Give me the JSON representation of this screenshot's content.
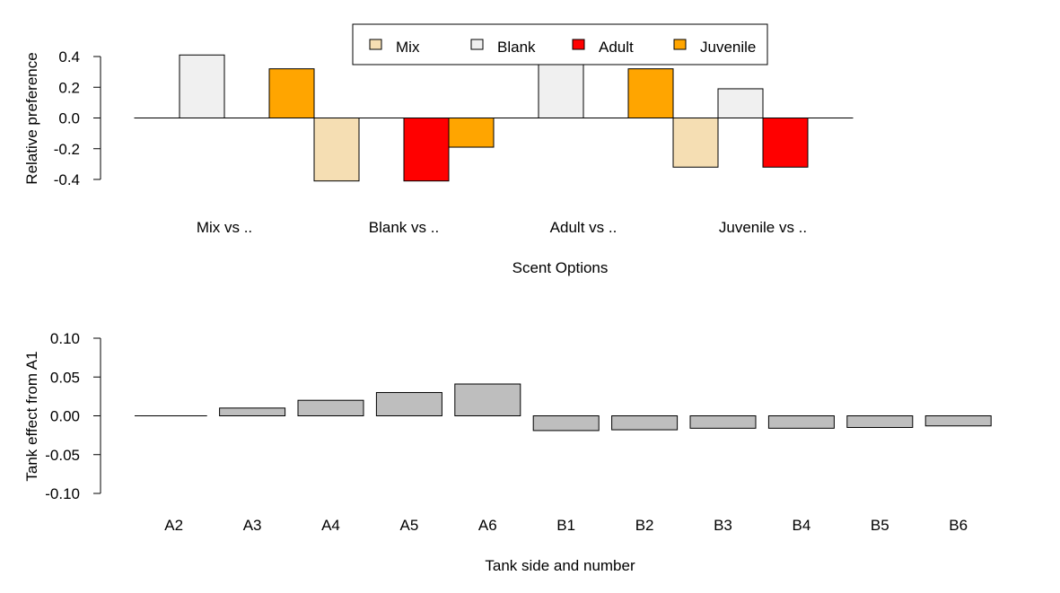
{
  "chart_data": [
    {
      "type": "bar",
      "xlabel": "Scent Options",
      "ylabel": "Relative preference",
      "ylim": [
        -0.4,
        0.4
      ],
      "yticks": [
        "0.4",
        "0.2",
        "0.0",
        "-0.2",
        "-0.4"
      ],
      "legend": {
        "position": "top-center",
        "entries": [
          {
            "name": "Mix",
            "color": "#F5DEB3"
          },
          {
            "name": "Blank",
            "color": "#F0F0F0"
          },
          {
            "name": "Adult",
            "color": "#FF0000"
          },
          {
            "name": "Juvenile",
            "color": "#FFA500"
          }
        ]
      },
      "groups": [
        {
          "label": "Mix vs ..",
          "values": [
            0.0,
            0.41,
            0.0,
            0.32
          ]
        },
        {
          "label": "Blank vs ..",
          "values": [
            -0.41,
            0.0,
            -0.41,
            -0.19
          ]
        },
        {
          "label": "Adult vs ..",
          "values": [
            0.0,
            0.41,
            0.0,
            0.32
          ]
        },
        {
          "label": "Juvenile vs ..",
          "values": [
            -0.32,
            0.19,
            -0.32,
            0.0
          ]
        }
      ]
    },
    {
      "type": "bar",
      "xlabel": "Tank side and number",
      "ylabel": "Tank effect from A1",
      "ylim": [
        -0.1,
        0.1
      ],
      "yticks": [
        "0.10",
        "0.05",
        "0.00",
        "-0.05",
        "-0.10"
      ],
      "color": "#BEBEBE",
      "categories": [
        "A2",
        "A3",
        "A4",
        "A5",
        "A6",
        "B1",
        "B2",
        "B3",
        "B4",
        "B5",
        "B6"
      ],
      "values": [
        0.0,
        0.01,
        0.02,
        0.03,
        0.041,
        -0.019,
        -0.018,
        -0.016,
        -0.016,
        -0.015,
        -0.013
      ]
    }
  ]
}
